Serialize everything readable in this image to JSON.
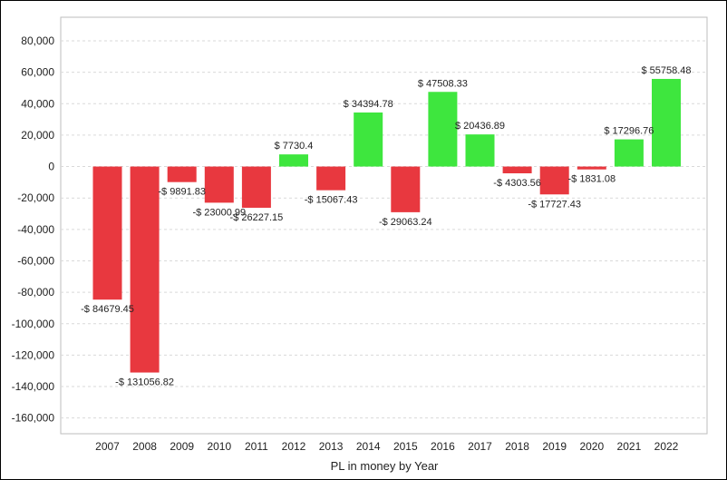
{
  "chart_data": {
    "type": "bar",
    "xlabel": "PL in money by Year",
    "ylabel": "",
    "ylim": [
      -170000,
      95000
    ],
    "yticks": [
      80000,
      60000,
      40000,
      20000,
      0,
      -20000,
      -40000,
      -60000,
      -80000,
      -100000,
      -120000,
      -140000,
      -160000
    ],
    "ytick_labels": [
      "80,000",
      "60,000",
      "40,000",
      "20,000",
      "0",
      "-20,000",
      "-40,000",
      "-60,000",
      "-80,000",
      "-100,000",
      "-120,000",
      "-140,000",
      "-160,000"
    ],
    "grid": true,
    "positive_color": "#3ee63e",
    "negative_color": "#e8383f",
    "categories": [
      "2007",
      "2008",
      "2009",
      "2010",
      "2011",
      "2012",
      "2013",
      "2014",
      "2015",
      "2016",
      "2017",
      "2018",
      "2019",
      "2020",
      "2021",
      "2022"
    ],
    "values": [
      -84679.45,
      -131056.82,
      -9891.83,
      -23000.99,
      -26227.15,
      7730.4,
      -15067.43,
      34394.78,
      -29063.24,
      47508.33,
      20436.89,
      -4303.56,
      -17727.43,
      -1831.08,
      17296.76,
      55758.48
    ],
    "labels": [
      "-$ 84679.45",
      "-$ 131056.82",
      "-$ 9891.83",
      "-$ 23000.99",
      "-$ 26227.15",
      "$ 7730.4",
      "-$ 15067.43",
      "$ 34394.78",
      "-$ 29063.24",
      "$ 47508.33",
      "$ 20436.89",
      "-$ 4303.56",
      "-$ 17727.43",
      "-$ 1831.08",
      "$ 17296.76",
      "$ 55758.48"
    ]
  }
}
